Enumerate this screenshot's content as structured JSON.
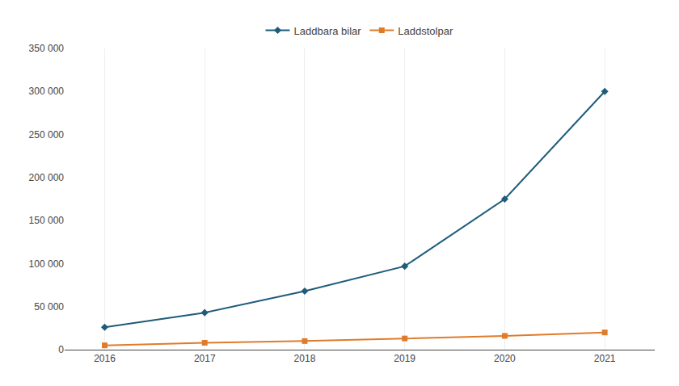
{
  "chart_data": {
    "type": "line",
    "x": [
      2016,
      2017,
      2018,
      2019,
      2020,
      2021
    ],
    "series": [
      {
        "name": "Laddbara bilar",
        "color": "#1f5c7a",
        "marker": "diamond",
        "values": [
          26000,
          43000,
          68000,
          97000,
          175000,
          300000
        ]
      },
      {
        "name": "Laddstolpar",
        "color": "#e07b2a",
        "marker": "square",
        "values": [
          5000,
          8000,
          10000,
          13000,
          16000,
          20000
        ]
      }
    ],
    "xlim": [
      2015.6,
      2021.5
    ],
    "xticks": [
      2016,
      2017,
      2018,
      2019,
      2020,
      2021
    ],
    "ylim": [
      0,
      350000
    ],
    "yticks": [
      0,
      {
        "value": 50000,
        "label": "50 000"
      },
      {
        "value": 100000,
        "label": "100 000"
      },
      {
        "value": 150000,
        "label": "150 000"
      },
      {
        "value": 200000,
        "label": "200 000"
      },
      {
        "value": 250000,
        "label": "250 000"
      },
      {
        "value": 300000,
        "label": "300 000"
      },
      {
        "value": 350000,
        "label": "350 000"
      }
    ],
    "grid": "x",
    "legend": "top"
  }
}
